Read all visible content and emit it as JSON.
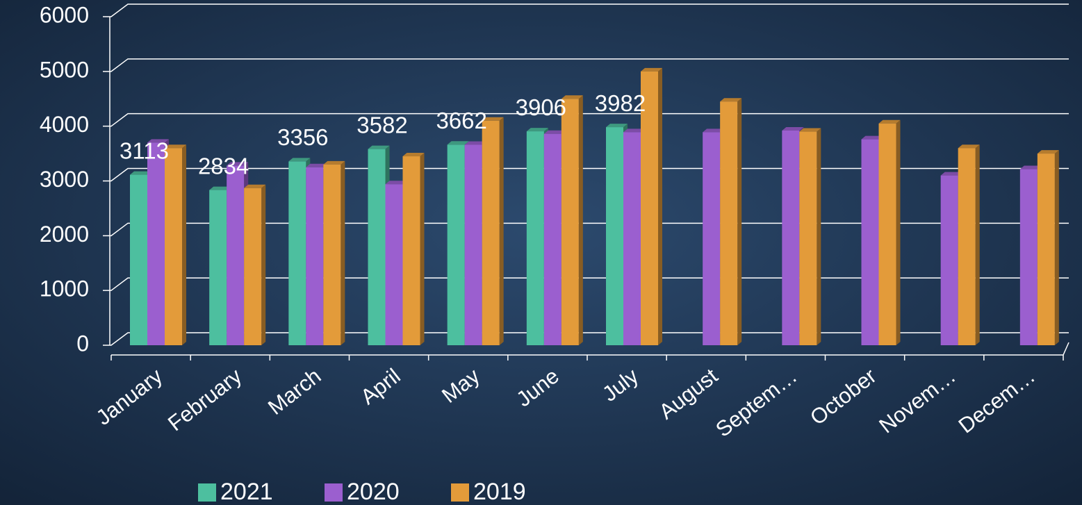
{
  "chart_data": {
    "type": "bar",
    "categories": [
      "January",
      "February",
      "March",
      "April",
      "May",
      "June",
      "July",
      "August",
      "Septem…",
      "October",
      "Novem…",
      "Decem…"
    ],
    "series": [
      {
        "name": "2021",
        "color": "#4dbf9f",
        "values": [
          3113,
          2834,
          3356,
          3582,
          3662,
          3906,
          3982,
          null,
          null,
          null,
          null,
          null
        ]
      },
      {
        "name": "2020",
        "color": "#9b5fcf",
        "values": [
          3700,
          3280,
          3250,
          2940,
          3660,
          3860,
          3890,
          3890,
          3920,
          3760,
          3100,
          3215
        ]
      },
      {
        "name": "2019",
        "color": "#e39b3a",
        "values": [
          3600,
          2870,
          3300,
          3450,
          4100,
          4500,
          5000,
          4450,
          3900,
          4050,
          3600,
          3500
        ]
      }
    ],
    "ylim": [
      0,
      6000
    ],
    "yticks": [
      0,
      1000,
      2000,
      3000,
      4000,
      5000,
      6000
    ],
    "grid": true,
    "data_labels_series": 0,
    "legend": "bottom"
  }
}
